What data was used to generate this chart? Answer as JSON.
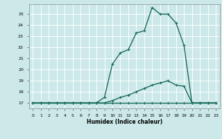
{
  "xlabel": "Humidex (Indice chaleur)",
  "ylabel": "",
  "bg_color": "#cce8e8",
  "grid_color": "#ffffff",
  "line_color": "#1a6b5a",
  "xlim": [
    -0.5,
    23.5
  ],
  "ylim": [
    16.5,
    25.9
  ],
  "xticks": [
    0,
    1,
    2,
    3,
    4,
    5,
    6,
    7,
    8,
    9,
    10,
    11,
    12,
    13,
    14,
    15,
    16,
    17,
    18,
    19,
    20,
    21,
    22,
    23
  ],
  "yticks": [
    17,
    18,
    19,
    20,
    21,
    22,
    23,
    24,
    25
  ],
  "line1_x": [
    0,
    1,
    2,
    3,
    4,
    5,
    6,
    7,
    8,
    9,
    10,
    11,
    12,
    13,
    14,
    15,
    16,
    17,
    18,
    19,
    20,
    21,
    22,
    23
  ],
  "line1_y": [
    17,
    17,
    17,
    17,
    17,
    17,
    17,
    17,
    17,
    17,
    17,
    17,
    17,
    17,
    17,
    17,
    17,
    17,
    17,
    17,
    17,
    17,
    17,
    17
  ],
  "line2_x": [
    0,
    1,
    2,
    3,
    4,
    5,
    6,
    7,
    8,
    9,
    10,
    11,
    12,
    13,
    14,
    15,
    16,
    17,
    18,
    19,
    20,
    21,
    22,
    23
  ],
  "line2_y": [
    17,
    17,
    17,
    17,
    17,
    17,
    17,
    17,
    17,
    17,
    17.2,
    17.5,
    17.7,
    18.0,
    18.3,
    18.6,
    18.8,
    19.0,
    18.6,
    18.5,
    17.0,
    17.0,
    17.0,
    17.0
  ],
  "line3_x": [
    0,
    1,
    2,
    3,
    4,
    5,
    6,
    7,
    8,
    9,
    10,
    11,
    12,
    13,
    14,
    15,
    16,
    17,
    18,
    19,
    20,
    21,
    22,
    23
  ],
  "line3_y": [
    17,
    17,
    17,
    17,
    17,
    17,
    17,
    17,
    17,
    17.5,
    20.5,
    21.5,
    21.8,
    23.3,
    23.5,
    25.6,
    25.0,
    25.0,
    24.2,
    22.2,
    17.0,
    17.0,
    17.0,
    17.0
  ],
  "marker": "+",
  "markersize": 3.5,
  "linewidth": 1.0
}
